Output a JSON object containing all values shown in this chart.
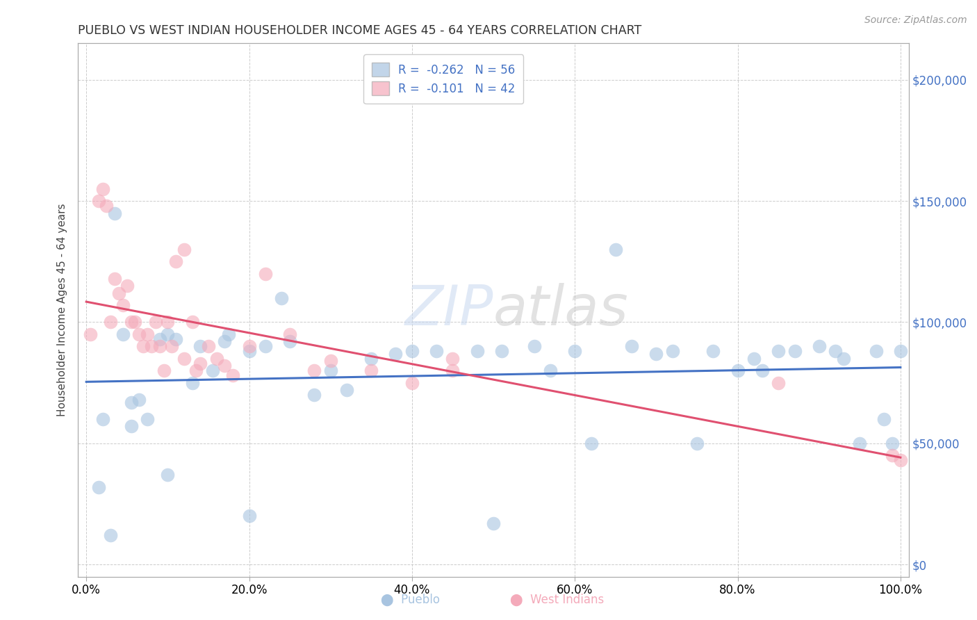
{
  "title": "PUEBLO VS WEST INDIAN HOUSEHOLDER INCOME AGES 45 - 64 YEARS CORRELATION CHART",
  "source": "Source: ZipAtlas.com",
  "ylabel": "Householder Income Ages 45 - 64 years",
  "xlim": [
    -1.0,
    101.0
  ],
  "ylim": [
    -5000,
    215000
  ],
  "xticks": [
    0.0,
    20.0,
    40.0,
    60.0,
    80.0,
    100.0
  ],
  "xtick_labels": [
    "0.0%",
    "20.0%",
    "40.0%",
    "60.0%",
    "80.0%",
    "100.0%"
  ],
  "ytick_positions": [
    0,
    50000,
    100000,
    150000,
    200000
  ],
  "ytick_labels": [
    "$0",
    "$50,000",
    "$100,000",
    "$150,000",
    "$200,000"
  ],
  "pueblo_R": -0.262,
  "pueblo_N": 56,
  "westindian_R": -0.101,
  "westindian_N": 42,
  "pueblo_color": "#A8C4E0",
  "westindian_color": "#F4AABA",
  "pueblo_line_color": "#4472C4",
  "westindian_line_color": "#E05070",
  "background_color": "#FFFFFF",
  "grid_color": "#CCCCCC",
  "watermark_color": "#D0DCF0",
  "pueblo_x": [
    1.5,
    2.0,
    3.5,
    4.5,
    5.5,
    5.5,
    6.5,
    7.5,
    9.0,
    10.0,
    11.0,
    13.0,
    14.0,
    15.5,
    17.0,
    17.5,
    20.0,
    22.0,
    24.0,
    25.0,
    28.0,
    30.0,
    32.0,
    35.0,
    38.0,
    40.0,
    43.0,
    48.0,
    51.0,
    55.0,
    57.0,
    60.0,
    62.0,
    65.0,
    67.0,
    70.0,
    72.0,
    75.0,
    77.0,
    80.0,
    82.0,
    83.0,
    85.0,
    87.0,
    90.0,
    92.0,
    93.0,
    95.0,
    97.0,
    98.0,
    99.0,
    100.0,
    3.0,
    10.0,
    20.0,
    50.0
  ],
  "pueblo_y": [
    32000,
    60000,
    145000,
    95000,
    67000,
    57000,
    68000,
    60000,
    93000,
    95000,
    93000,
    75000,
    90000,
    80000,
    92000,
    95000,
    88000,
    90000,
    110000,
    92000,
    70000,
    80000,
    72000,
    85000,
    87000,
    88000,
    88000,
    88000,
    88000,
    90000,
    80000,
    88000,
    50000,
    130000,
    90000,
    87000,
    88000,
    50000,
    88000,
    80000,
    85000,
    80000,
    88000,
    88000,
    90000,
    88000,
    85000,
    50000,
    88000,
    60000,
    50000,
    88000,
    12000,
    37000,
    20000,
    17000
  ],
  "westindian_x": [
    0.5,
    1.5,
    2.0,
    2.5,
    3.0,
    3.5,
    4.0,
    4.5,
    5.0,
    5.5,
    6.0,
    6.5,
    7.0,
    7.5,
    8.0,
    8.5,
    9.0,
    9.5,
    10.0,
    10.5,
    11.0,
    12.0,
    13.0,
    14.0,
    15.0,
    16.0,
    17.0,
    18.0,
    20.0,
    22.0,
    25.0,
    28.0,
    30.0,
    35.0,
    40.0,
    45.0,
    99.0,
    100.0,
    85.0,
    12.0,
    13.5,
    45.0
  ],
  "westindian_y": [
    95000,
    150000,
    155000,
    148000,
    100000,
    118000,
    112000,
    107000,
    115000,
    100000,
    100000,
    95000,
    90000,
    95000,
    90000,
    100000,
    90000,
    80000,
    100000,
    90000,
    125000,
    130000,
    100000,
    83000,
    90000,
    85000,
    82000,
    78000,
    90000,
    120000,
    95000,
    80000,
    84000,
    80000,
    75000,
    80000,
    45000,
    43000,
    75000,
    85000,
    80000,
    85000
  ]
}
